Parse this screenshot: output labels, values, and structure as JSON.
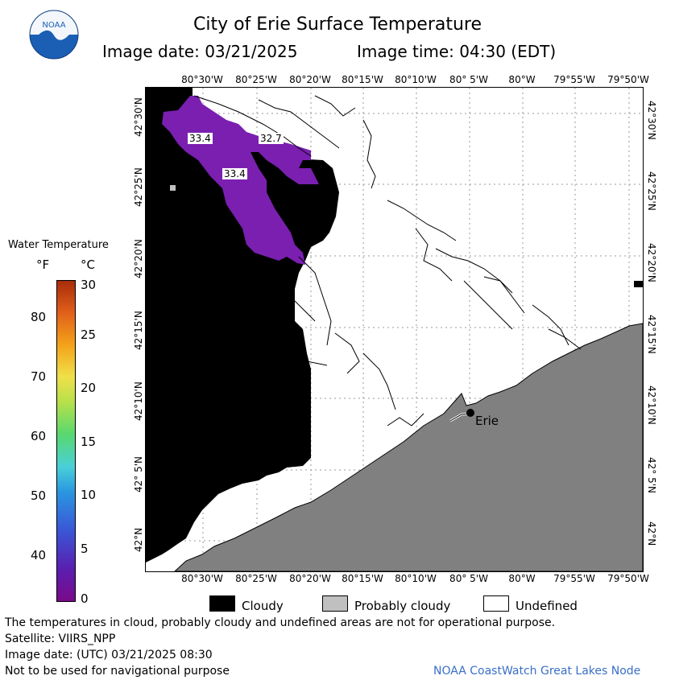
{
  "title": "City of Erie Surface Temperature",
  "image_date_label": "Image date: 03/21/2025",
  "image_time_label": "Image time: 04:30 (EDT)",
  "logo_text": "NOAA",
  "lon_ticks": [
    "80°30'W",
    "80°25'W",
    "80°20'W",
    "80°15'W",
    "80°10'W",
    "80° 5'W",
    "80°W",
    "79°55'W",
    "79°50'W"
  ],
  "lat_ticks": [
    "42°30'N",
    "42°25'N",
    "42°20'N",
    "42°15'N",
    "42°10'N",
    "42° 5'N",
    "42°N"
  ],
  "legend": {
    "title": "Water Temperature",
    "unit_f": "°F",
    "unit_c": "°C",
    "f_labels": [
      "80",
      "70",
      "60",
      "50",
      "40"
    ],
    "c_labels": [
      "30",
      "25",
      "20",
      "15",
      "10",
      "5",
      "0"
    ]
  },
  "temp_labels": [
    "33.4",
    "32.7",
    "33.4"
  ],
  "city_label": "Erie",
  "key": {
    "cloudy": "Cloudy",
    "probably_cloudy": "Probably cloudy",
    "undefined": "Undefined"
  },
  "footer": {
    "line1": "The temperatures in cloud, probably cloudy and undefined areas are not for operational purpose.",
    "line2": "Satellite: VIIRS_NPP",
    "line3": "Image date: (UTC) 03/21/2025  08:30",
    "line4": "Not to be used for navigational purpose",
    "credit": "NOAA CoastWatch Great Lakes Node"
  },
  "colors": {
    "cloud": "#000000",
    "probably_cloud": "#c0c0c0",
    "land": "#808080",
    "water_purple": "#7a1fb0"
  }
}
